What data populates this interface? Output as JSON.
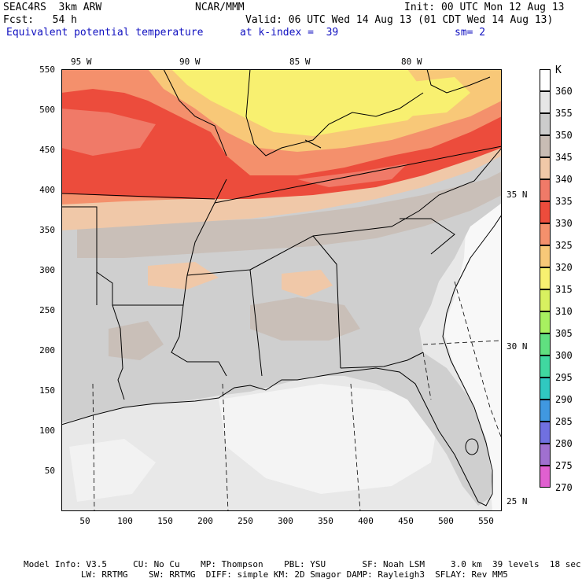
{
  "header": {
    "model": "SEAC4RS  3km ARW",
    "org": "NCAR/MMM",
    "init": "Init: 00 UTC Mon 12 Aug 13",
    "fcst": "Fcst:   54 h",
    "valid": "Valid: 06 UTC Wed 14 Aug 13 (01 CDT Wed 14 Aug 13)",
    "field": "Equivalent potential temperature",
    "level": "at k-index =  39",
    "smooth": "sm= 2"
  },
  "map": {
    "lon_labels": [
      "95 W",
      "90 W",
      "85 W",
      "80 W"
    ],
    "lat_labels": [
      "35 N",
      "30 N",
      "25 N"
    ],
    "x_ticks": [
      "50",
      "100",
      "150",
      "200",
      "250",
      "300",
      "350",
      "400",
      "450",
      "500",
      "550"
    ],
    "y_ticks": [
      "550",
      "500",
      "450",
      "400",
      "350",
      "300",
      "250",
      "200",
      "150",
      "100",
      "50"
    ]
  },
  "colorbar": {
    "unit": "K",
    "levels": [
      {
        "value": "360",
        "color": "#ffffff"
      },
      {
        "value": "355",
        "color": "#e6e6e6"
      },
      {
        "value": "350",
        "color": "#cccccc"
      },
      {
        "value": "345",
        "color": "#c8bcb4"
      },
      {
        "value": "340",
        "color": "#f0c8a8"
      },
      {
        "value": "335",
        "color": "#f07a68"
      },
      {
        "value": "330",
        "color": "#ec4c3c"
      },
      {
        "value": "325",
        "color": "#f4906c"
      },
      {
        "value": "320",
        "color": "#f8c878"
      },
      {
        "value": "315",
        "color": "#f8f070"
      },
      {
        "value": "310",
        "color": "#d8f060"
      },
      {
        "value": "305",
        "color": "#a8f060"
      },
      {
        "value": "300",
        "color": "#60e080"
      },
      {
        "value": "295",
        "color": "#40d8a0"
      },
      {
        "value": "290",
        "color": "#30c8c0"
      },
      {
        "value": "285",
        "color": "#4098e0"
      },
      {
        "value": "280",
        "color": "#7070e0"
      },
      {
        "value": "275",
        "color": "#a070d0"
      },
      {
        "value": "270",
        "color": "#e060d0"
      }
    ]
  },
  "footer": {
    "line1": "Model Info: V3.5     CU: No Cu    MP: Thompson    PBL: YSU       SF: Noah LSM     3.0 km  39 levels  18 sec",
    "line2": "           LW: RRTMG    SW: RRTMG  DIFF: simple KM: 2D Smagor DAMP: Rayleigh3  SFLAY: Rev MM5"
  }
}
